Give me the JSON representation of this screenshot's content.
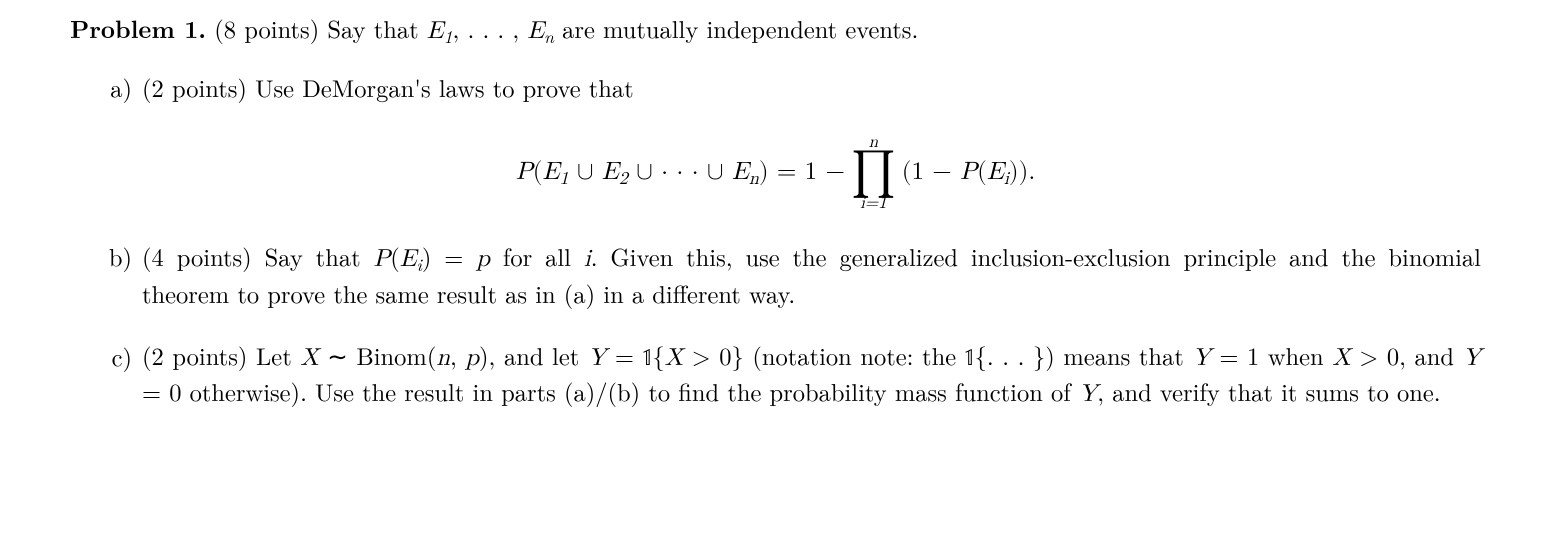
{
  "problem": {
    "label_bold": "Problem 1.",
    "points": "(8 points)",
    "intro_a": "Say that ",
    "events_start": "E",
    "sub1": "1",
    "comma_dots": ", . . . , ",
    "events_end_sub": "n",
    "intro_b": " are mutually independent events."
  },
  "a": {
    "label": "a)",
    "points": "(2 points)",
    "text": " Use DeMorgan's laws to prove that"
  },
  "formula": {
    "lhs_P": "P",
    "lhs_open": "(",
    "E": "E",
    "s1": "1",
    "cup": " ∪ ",
    "s2": "2",
    "cup_dots": " ∪ · · · ∪ ",
    "sn": "n",
    "lhs_close": ")",
    "eq": " = 1 − ",
    "prod_top": "n",
    "prod_sym": "∏",
    "prod_bot": "i=1",
    "rhs_open": "(1 − ",
    "rhs_P": "P",
    "rhs_paren_open": "(",
    "si": "i",
    "rhs_paren_close": "))",
    "dot": "."
  },
  "b": {
    "label": "b)",
    "points": "(4 points)",
    "t1": " Say that ",
    "t2": " for all ",
    "t3": ".  Given this, use the generalized inclusion-exclusion principle and the binomial theorem to prove the same result as in (a) in a different way.",
    "PEi_eq_p_P": "P",
    "PEi_eq_p_open": "(",
    "PEi_eq_p_E": "E",
    "PEi_eq_p_i": "i",
    "PEi_eq_p_close": ") = ",
    "PEi_eq_p_p": "p",
    "ivar": "i"
  },
  "c": {
    "label": "c)",
    "points": "(2 points)",
    "t1": " Let ",
    "X": "X",
    "sim": " ∼ Binom(",
    "n": "n",
    "comma": ", ",
    "p": "p",
    "close1": "), and let ",
    "Y": "Y",
    "eq": " = ",
    "one": "𝟙",
    "brace_open": "{",
    "gt": " > 0",
    "brace_close": "}",
    "note_open": " (notation note:  the ",
    "note_dots": "{. . . }",
    "note_close": ") means that ",
    "eq1": " = 1 when ",
    "gt0": " > 0, and ",
    "eq0": " = 0 otherwise).  Use the result in parts (a)/(b) to find the probability mass function of ",
    "tail": ", and verify that it sums to one."
  }
}
